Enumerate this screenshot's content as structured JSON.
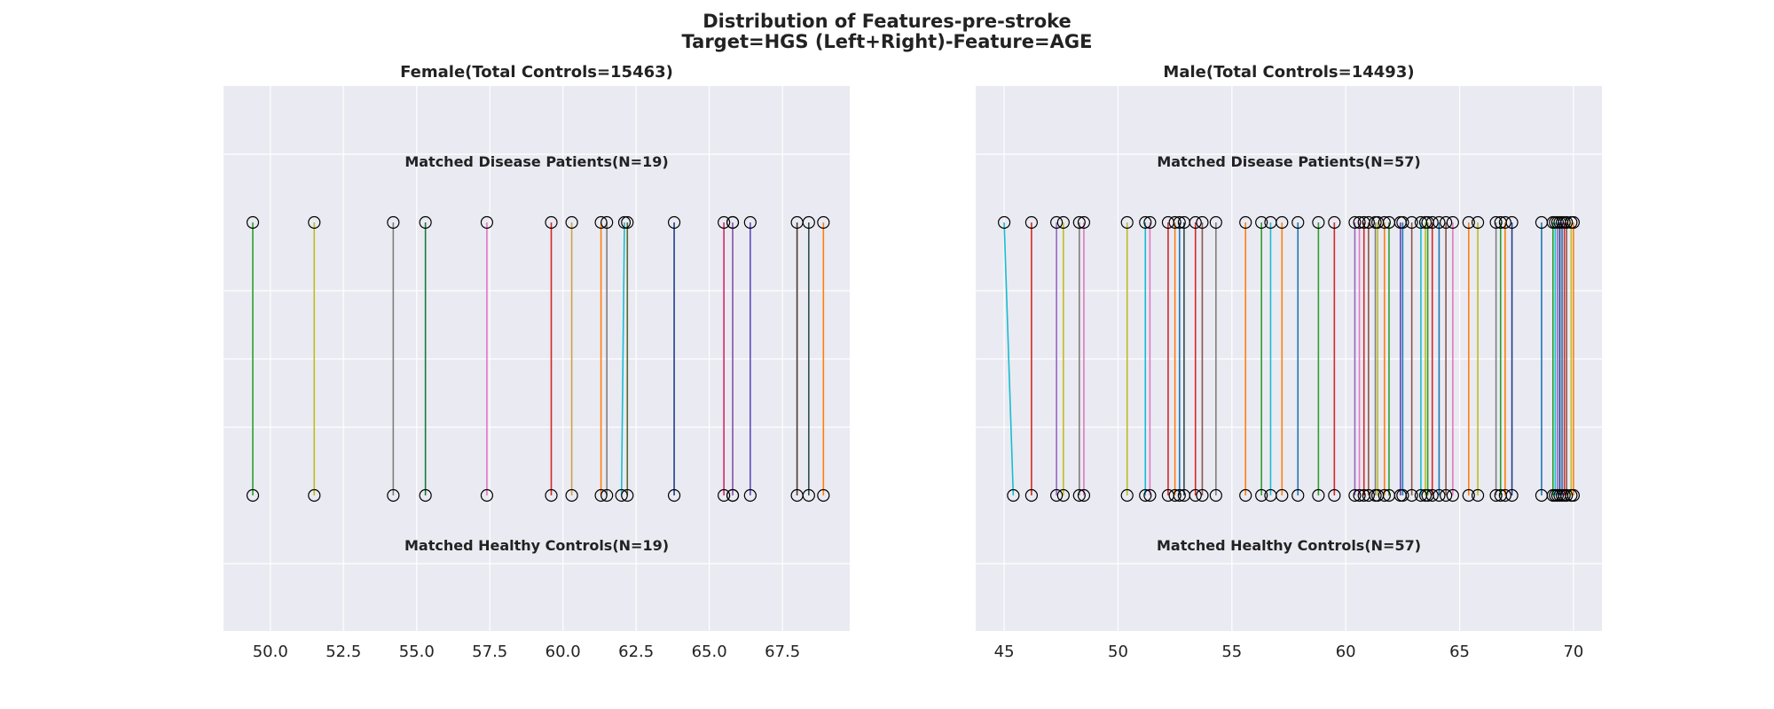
{
  "title": [
    "Distribution of Features-pre-stroke",
    "Target=HGS (Left+Right)-Feature=AGE"
  ],
  "chart_data": [
    {
      "type": "scatter",
      "title": "Female(Total Controls=15463)",
      "top_label": "Matched Disease Patients(N=19)",
      "bottom_label": "Matched Healthy Controls(N=19)",
      "xlim": [
        48.4,
        69.8
      ],
      "xticks": [
        50.0,
        52.5,
        55.0,
        57.5,
        60.0,
        62.5,
        65.0,
        67.5
      ],
      "xtick_labels": [
        "50.0",
        "52.5",
        "55.0",
        "57.5",
        "60.0",
        "62.5",
        "65.0",
        "67.5"
      ],
      "grid": true,
      "pairs": [
        {
          "patient": 49.4,
          "control": 49.4,
          "color": "#2ca02c"
        },
        {
          "patient": 51.5,
          "control": 51.5,
          "color": "#bcbd22"
        },
        {
          "patient": 54.2,
          "control": 54.2,
          "color": "#7f7f7f"
        },
        {
          "patient": 55.3,
          "control": 55.3,
          "color": "#1a7a3a"
        },
        {
          "patient": 57.4,
          "control": 57.4,
          "color": "#e377c2"
        },
        {
          "patient": 59.6,
          "control": 59.6,
          "color": "#d62728"
        },
        {
          "patient": 60.3,
          "control": 60.3,
          "color": "#d1a045"
        },
        {
          "patient": 61.3,
          "control": 61.3,
          "color": "#ff7f0e"
        },
        {
          "patient": 61.5,
          "control": 61.5,
          "color": "#7f7f7f"
        },
        {
          "patient": 62.1,
          "control": 62.0,
          "color": "#17becf"
        },
        {
          "patient": 62.2,
          "control": 62.2,
          "color": "#556b2f"
        },
        {
          "patient": 63.8,
          "control": 63.8,
          "color": "#1f3f8f"
        },
        {
          "patient": 65.5,
          "control": 65.5,
          "color": "#d62760"
        },
        {
          "patient": 65.8,
          "control": 65.8,
          "color": "#8c564b"
        },
        {
          "patient": 66.4,
          "control": 66.4,
          "color": "#5b4bbf"
        },
        {
          "patient": 68.0,
          "control": 68.0,
          "color": "#4b3a2a"
        },
        {
          "patient": 68.4,
          "control": 68.4,
          "color": "#2f4f4f"
        },
        {
          "patient": 68.9,
          "control": 68.9,
          "color": "#ff7f0e"
        },
        {
          "patient": 65.8,
          "control": 65.8,
          "color": "#9467bd"
        }
      ]
    },
    {
      "type": "scatter",
      "title": "Male(Total Controls=14493)",
      "top_label": "Matched Disease Patients(N=57)",
      "bottom_label": "Matched Healthy Controls(N=57)",
      "xlim": [
        43.75,
        71.25
      ],
      "xticks": [
        45,
        50,
        55,
        60,
        65,
        70
      ],
      "xtick_labels": [
        "45",
        "50",
        "55",
        "60",
        "65",
        "70"
      ],
      "grid": true,
      "pairs": [
        {
          "patient": 45.0,
          "control": 45.4,
          "color": "#17becf"
        },
        {
          "patient": 46.2,
          "control": 46.2,
          "color": "#d62728"
        },
        {
          "patient": 47.3,
          "control": 47.3,
          "color": "#9467bd"
        },
        {
          "patient": 47.6,
          "control": 47.6,
          "color": "#bcbd22"
        },
        {
          "patient": 48.3,
          "control": 48.3,
          "color": "#7f7f7f"
        },
        {
          "patient": 48.5,
          "control": 48.5,
          "color": "#e377c2"
        },
        {
          "patient": 50.4,
          "control": 50.4,
          "color": "#bcbd22"
        },
        {
          "patient": 51.2,
          "control": 51.2,
          "color": "#17becf"
        },
        {
          "patient": 51.4,
          "control": 51.4,
          "color": "#e377c2"
        },
        {
          "patient": 52.2,
          "control": 52.2,
          "color": "#d62728"
        },
        {
          "patient": 52.5,
          "control": 52.5,
          "color": "#ff7f0e"
        },
        {
          "patient": 52.7,
          "control": 52.7,
          "color": "#1f77b4"
        },
        {
          "patient": 52.9,
          "control": 52.9,
          "color": "#2f4f4f"
        },
        {
          "patient": 53.4,
          "control": 53.4,
          "color": "#d62728"
        },
        {
          "patient": 53.7,
          "control": 53.7,
          "color": "#8c564b"
        },
        {
          "patient": 54.3,
          "control": 54.3,
          "color": "#7f7f7f"
        },
        {
          "patient": 55.6,
          "control": 55.6,
          "color": "#ff7f0e"
        },
        {
          "patient": 56.3,
          "control": 56.3,
          "color": "#2ca02c"
        },
        {
          "patient": 56.7,
          "control": 56.7,
          "color": "#17becf"
        },
        {
          "patient": 57.2,
          "control": 57.2,
          "color": "#ff7f0e"
        },
        {
          "patient": 57.9,
          "control": 57.9,
          "color": "#1f77b4"
        },
        {
          "patient": 58.8,
          "control": 58.8,
          "color": "#2ca02c"
        },
        {
          "patient": 59.5,
          "control": 59.5,
          "color": "#d62728"
        },
        {
          "patient": 60.4,
          "control": 60.4,
          "color": "#9467bd"
        },
        {
          "patient": 60.6,
          "control": 60.6,
          "color": "#e377c2"
        },
        {
          "patient": 60.8,
          "control": 60.8,
          "color": "#d62728"
        },
        {
          "patient": 61.0,
          "control": 61.0,
          "color": "#8c564b"
        },
        {
          "patient": 61.3,
          "control": 61.3,
          "color": "#7f7f7f"
        },
        {
          "patient": 61.4,
          "control": 61.4,
          "color": "#bcbd22"
        },
        {
          "patient": 61.7,
          "control": 61.7,
          "color": "#ff7f0e"
        },
        {
          "patient": 61.9,
          "control": 61.9,
          "color": "#2ca02c"
        },
        {
          "patient": 62.4,
          "control": 62.4,
          "color": "#5b4bbf"
        },
        {
          "patient": 62.5,
          "control": 62.5,
          "color": "#1f77b4"
        },
        {
          "patient": 62.9,
          "control": 62.9,
          "color": "#8c564b"
        },
        {
          "patient": 63.3,
          "control": 63.3,
          "color": "#17becf"
        },
        {
          "patient": 63.5,
          "control": 63.5,
          "color": "#bcbd22"
        },
        {
          "patient": 63.6,
          "control": 63.6,
          "color": "#2ca02c"
        },
        {
          "patient": 63.8,
          "control": 63.8,
          "color": "#d62728"
        },
        {
          "patient": 64.1,
          "control": 64.1,
          "color": "#1f77b4"
        },
        {
          "patient": 64.4,
          "control": 64.4,
          "color": "#8c564b"
        },
        {
          "patient": 64.7,
          "control": 64.7,
          "color": "#e377c2"
        },
        {
          "patient": 65.4,
          "control": 65.4,
          "color": "#ff7f0e"
        },
        {
          "patient": 65.8,
          "control": 65.8,
          "color": "#bcbd22"
        },
        {
          "patient": 66.6,
          "control": 66.6,
          "color": "#7f7f7f"
        },
        {
          "patient": 66.8,
          "control": 66.8,
          "color": "#2ca02c"
        },
        {
          "patient": 67.0,
          "control": 67.0,
          "color": "#ff7f0e"
        },
        {
          "patient": 67.3,
          "control": 67.3,
          "color": "#1f3f8f"
        },
        {
          "patient": 68.6,
          "control": 68.6,
          "color": "#1f77b4"
        },
        {
          "patient": 69.1,
          "control": 69.1,
          "color": "#2ca02c"
        },
        {
          "patient": 69.2,
          "control": 69.2,
          "color": "#17becf"
        },
        {
          "patient": 69.3,
          "control": 69.3,
          "color": "#9467bd"
        },
        {
          "patient": 69.4,
          "control": 69.4,
          "color": "#1f3f8f"
        },
        {
          "patient": 69.5,
          "control": 69.5,
          "color": "#1f77b4"
        },
        {
          "patient": 69.6,
          "control": 69.6,
          "color": "#d62728"
        },
        {
          "patient": 69.7,
          "control": 69.7,
          "color": "#8c564b"
        },
        {
          "patient": 69.9,
          "control": 69.9,
          "color": "#bcbd22"
        },
        {
          "patient": 70.0,
          "control": 70.0,
          "color": "#ff7f0e"
        }
      ]
    }
  ],
  "style": {
    "plot_background": "#eaeaf2",
    "grid_color": "#ffffff",
    "marker_edge": "#000000",
    "marker_face": "none"
  }
}
